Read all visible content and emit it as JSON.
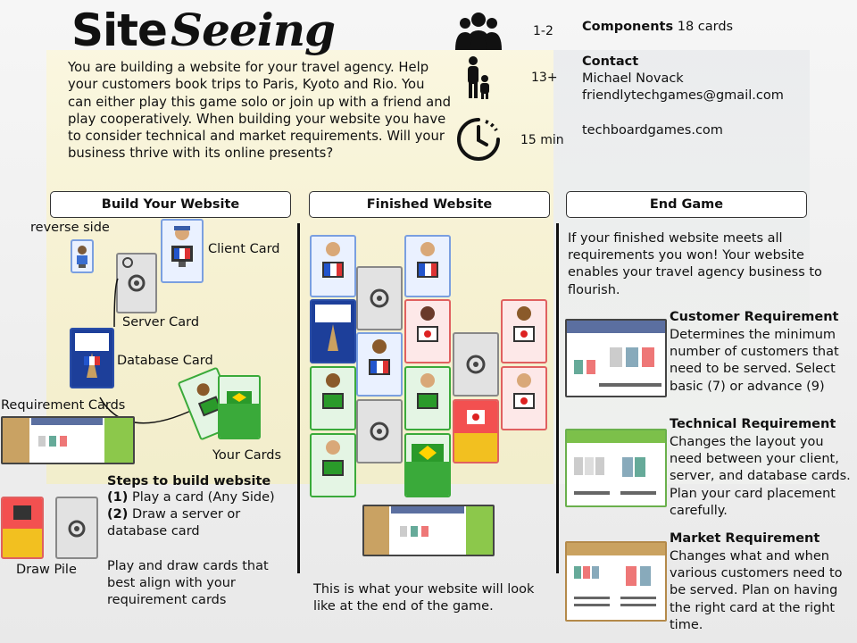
{
  "title": {
    "part1": "Site",
    "part2": "Seeing"
  },
  "intro": "You are  building a website for your travel agency. Help your customers book trips to Paris, Kyoto and Rio. You can either play this game solo or join up with a friend and play cooperatively. When building your website you have to consider technical and market requirements. Will your business thrive with its online presents?",
  "info": {
    "players": "1-2",
    "age": "13+",
    "time": "15 min",
    "components_label": "Components",
    "components_value": "18 cards",
    "contact_label": "Contact",
    "contact_name": "Michael Novack",
    "contact_email": "friendlytechgames@gmail.com",
    "website": "techboardgames.com"
  },
  "sections": {
    "build": "Build Your Website",
    "finished": "Finished Website",
    "end": "End Game"
  },
  "build": {
    "reverse_side": "reverse side",
    "client_card": "Client Card",
    "server_card": "Server Card",
    "database_card": "Database Card",
    "requirement_cards": "Requirement Cards",
    "your_cards": "Your Cards",
    "draw_pile": "Draw Pile",
    "steps_title": "Steps to build website",
    "step1_num": "(1)",
    "step1": " Play a card (Any Side)",
    "step2_num": "(2)",
    "step2": " Draw a server or database card",
    "advice": "Play and draw cards that best align with your requirement cards"
  },
  "finished": {
    "caption": "This is what your website will look like at the end of the game."
  },
  "end": {
    "intro": "If your finished website meets all requirements you won! Your website enables your travel agency business to flourish.",
    "customer_title": "Customer Requirement",
    "customer_desc": "Determines the minimum number of customers that need to be served. Select basic (7) or advance (9)",
    "technical_title": "Technical Requirement",
    "technical_desc": "Changes the layout you need between your client, server, and database cards. Plan your card placement carefully.",
    "market_title": "Market Requirement",
    "market_desc": "Changes what and when various customers need to be served. Plan on having the right card at the right time."
  },
  "icons": {
    "players": "people-group-icon",
    "age": "adult-child-icon",
    "time": "clock-icon"
  },
  "colors": {
    "panel": "#f7f1cc",
    "blue_card": "#7a9fe0",
    "green_card": "#3aaa3a",
    "red_card": "#e06060",
    "grey_card": "#888888"
  }
}
